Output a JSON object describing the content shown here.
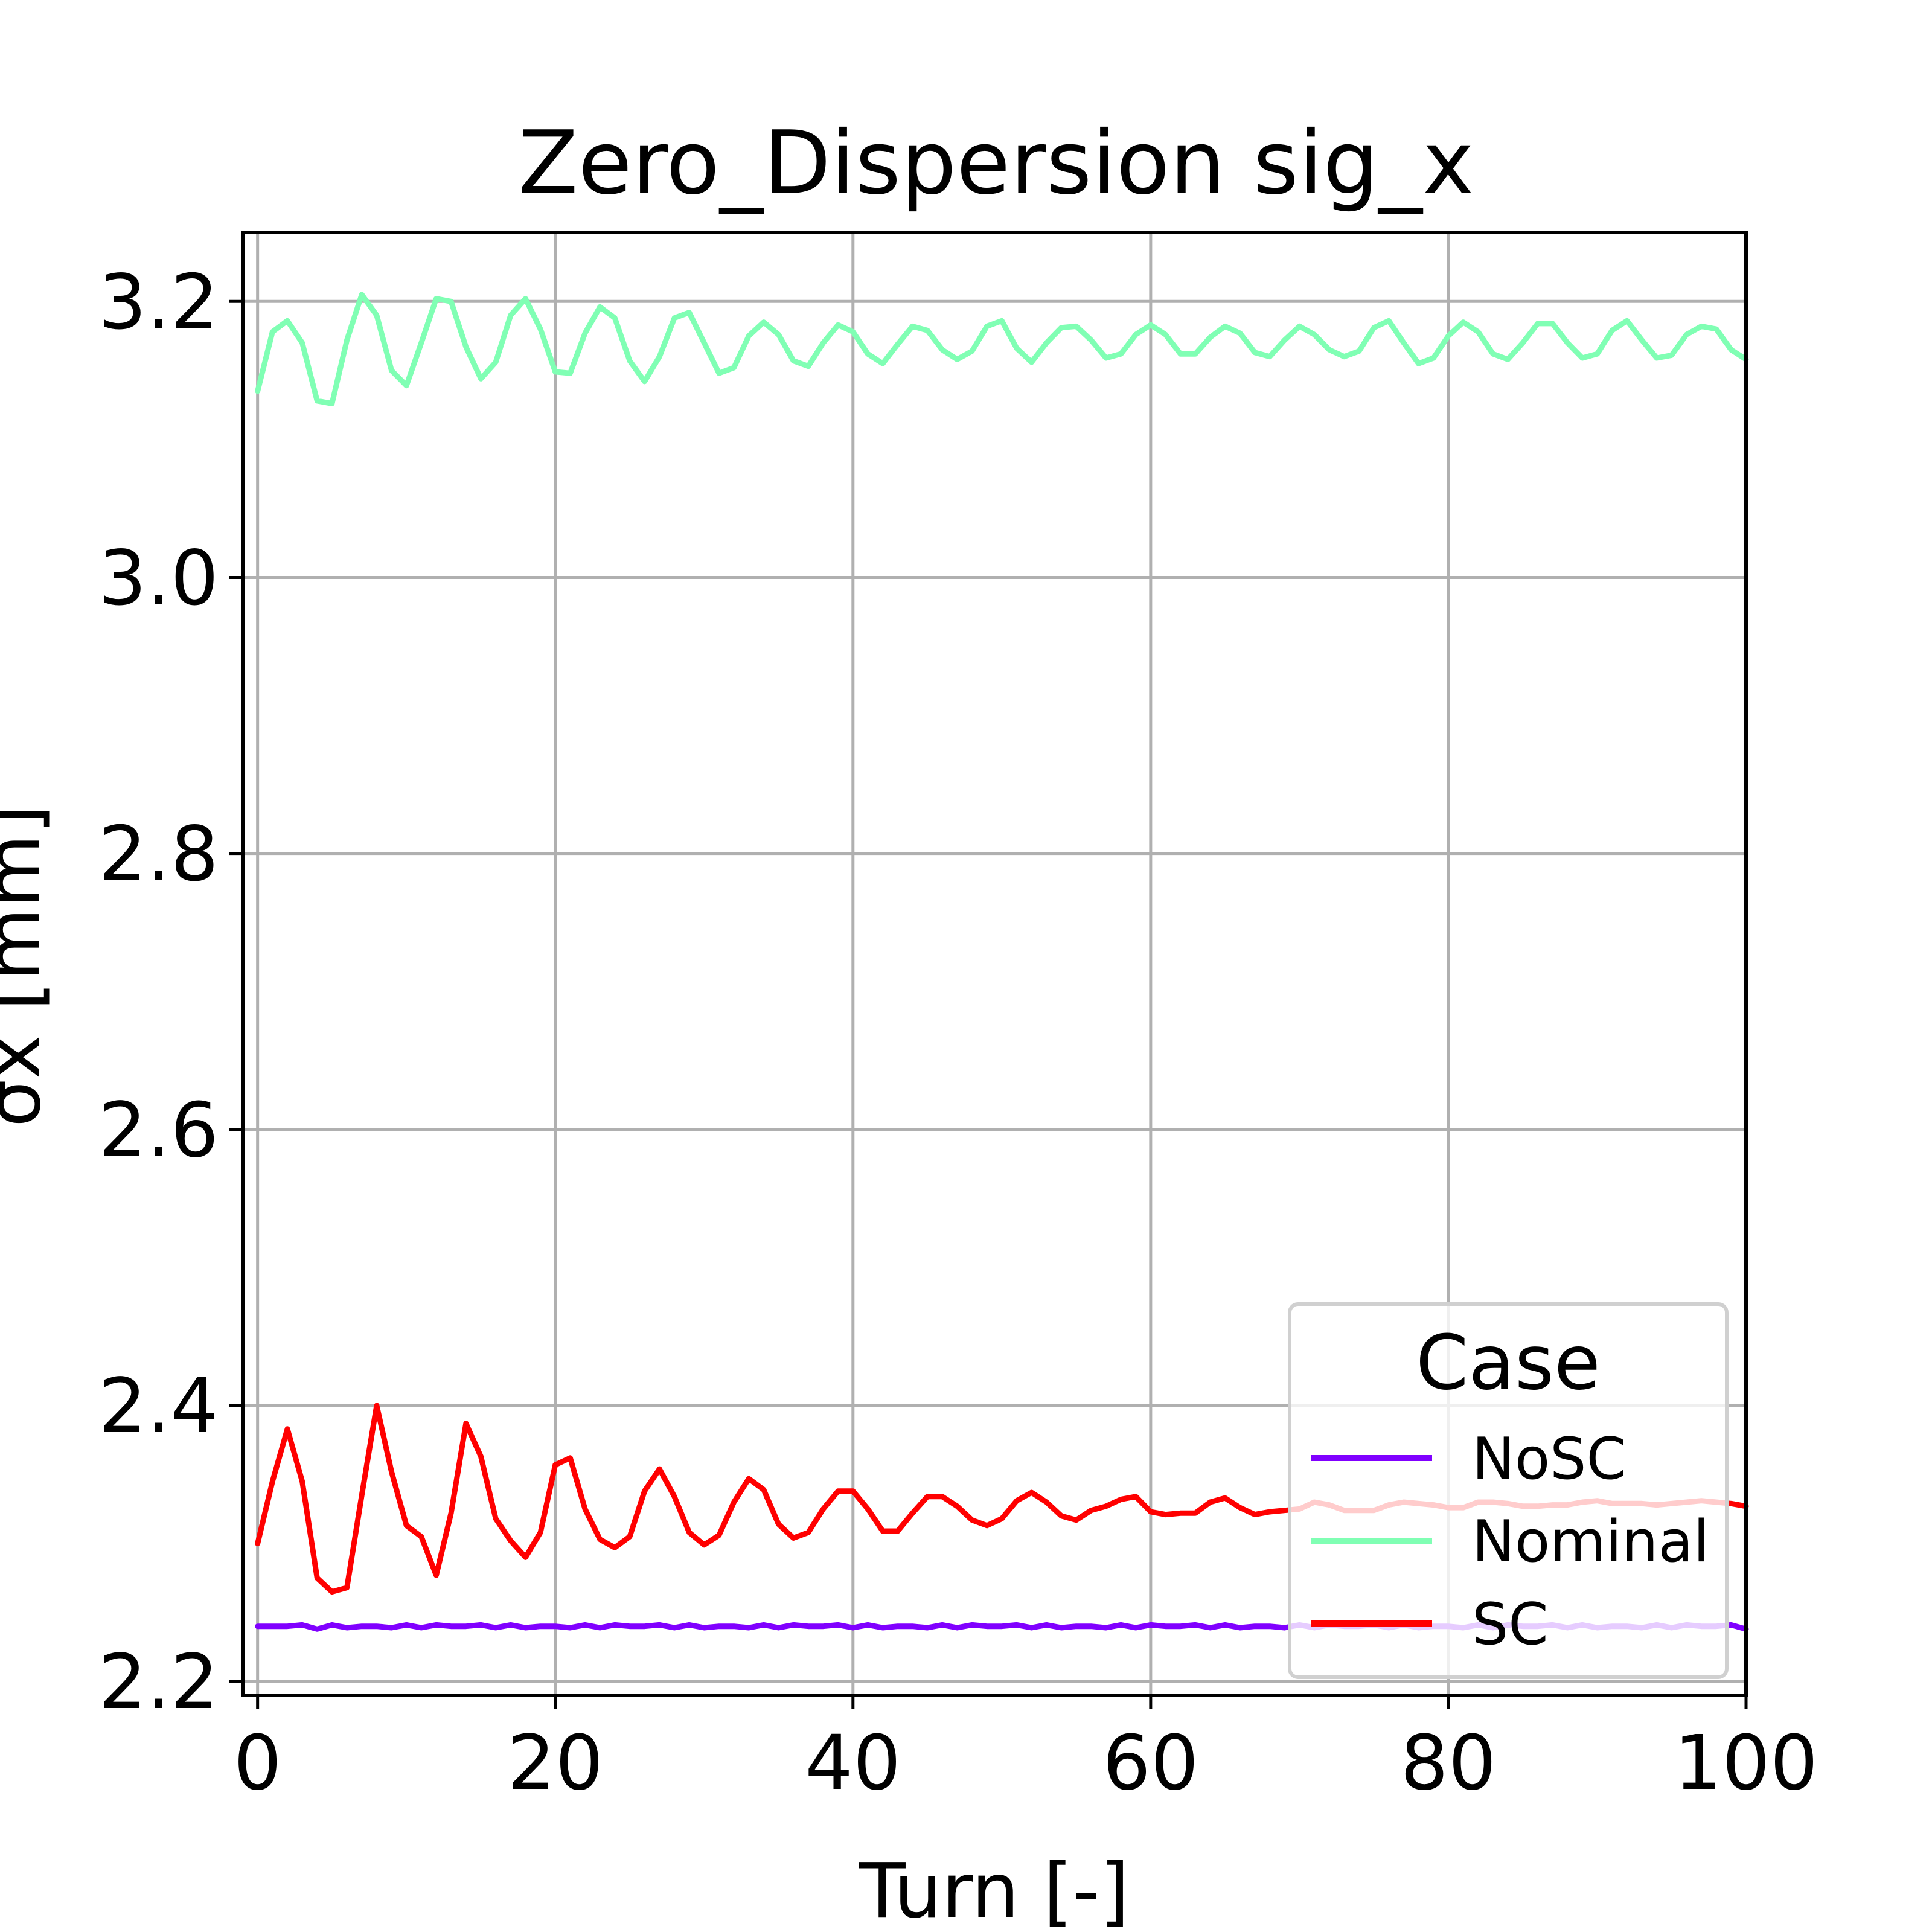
{
  "chart_data": {
    "type": "line",
    "title": "Zero_Dispersion  sig_x",
    "xlabel": "Turn [-]",
    "ylabel": "σx [mm]",
    "xlim": [
      -1,
      100
    ],
    "ylim": [
      2.19,
      3.25
    ],
    "xticks": [
      0,
      20,
      40,
      60,
      80,
      100
    ],
    "yticks": [
      2.2,
      2.4,
      2.6,
      2.8,
      3.0,
      3.2
    ],
    "grid": true,
    "legend": {
      "title": "Case",
      "position": "lower-right"
    },
    "x": [
      0,
      1,
      2,
      3,
      4,
      5,
      6,
      7,
      8,
      9,
      10,
      11,
      12,
      13,
      14,
      15,
      16,
      17,
      18,
      19,
      20,
      21,
      22,
      23,
      24,
      25,
      26,
      27,
      28,
      29,
      30,
      31,
      32,
      33,
      34,
      35,
      36,
      37,
      38,
      39,
      40,
      41,
      42,
      43,
      44,
      45,
      46,
      47,
      48,
      49,
      50,
      51,
      52,
      53,
      54,
      55,
      56,
      57,
      58,
      59,
      60,
      61,
      62,
      63,
      64,
      65,
      66,
      67,
      68,
      69,
      70,
      71,
      72,
      73,
      74,
      75,
      76,
      77,
      78,
      79,
      80,
      81,
      82,
      83,
      84,
      85,
      86,
      87,
      88,
      89,
      90,
      91,
      92,
      93,
      94,
      95,
      96,
      97,
      98,
      99,
      100
    ],
    "series": [
      {
        "name": "NoSC",
        "color": "#8000ff",
        "values": [
          2.24,
          2.24,
          2.24,
          2.241,
          2.238,
          2.241,
          2.239,
          2.24,
          2.24,
          2.239,
          2.241,
          2.239,
          2.241,
          2.24,
          2.24,
          2.241,
          2.239,
          2.241,
          2.239,
          2.24,
          2.24,
          2.239,
          2.241,
          2.239,
          2.241,
          2.24,
          2.24,
          2.241,
          2.239,
          2.241,
          2.239,
          2.24,
          2.24,
          2.239,
          2.241,
          2.239,
          2.241,
          2.24,
          2.24,
          2.241,
          2.239,
          2.241,
          2.239,
          2.24,
          2.24,
          2.239,
          2.241,
          2.239,
          2.241,
          2.24,
          2.24,
          2.241,
          2.239,
          2.241,
          2.239,
          2.24,
          2.24,
          2.239,
          2.241,
          2.239,
          2.241,
          2.24,
          2.24,
          2.241,
          2.239,
          2.241,
          2.239,
          2.24,
          2.24,
          2.239,
          2.241,
          2.239,
          2.241,
          2.24,
          2.24,
          2.241,
          2.239,
          2.241,
          2.239,
          2.24,
          2.24,
          2.239,
          2.241,
          2.239,
          2.241,
          2.24,
          2.24,
          2.241,
          2.239,
          2.241,
          2.239,
          2.24,
          2.24,
          2.239,
          2.241,
          2.239,
          2.241,
          2.24,
          2.24,
          2.241,
          2.238
        ]
      },
      {
        "name": "Nominal",
        "color": "#80ffb4",
        "values": [
          3.135,
          3.178,
          3.186,
          3.17,
          3.128,
          3.126,
          3.172,
          3.205,
          3.19,
          3.15,
          3.139,
          3.17,
          3.202,
          3.2,
          3.167,
          3.144,
          3.156,
          3.19,
          3.202,
          3.18,
          3.149,
          3.148,
          3.177,
          3.196,
          3.188,
          3.157,
          3.142,
          3.16,
          3.188,
          3.192,
          3.17,
          3.148,
          3.152,
          3.175,
          3.185,
          3.176,
          3.157,
          3.153,
          3.17,
          3.183,
          3.178,
          3.162,
          3.155,
          3.169,
          3.182,
          3.179,
          3.165,
          3.158,
          3.164,
          3.182,
          3.186,
          3.166,
          3.156,
          3.17,
          3.181,
          3.182,
          3.172,
          3.159,
          3.162,
          3.176,
          3.183,
          3.176,
          3.162,
          3.162,
          3.174,
          3.182,
          3.177,
          3.163,
          3.16,
          3.172,
          3.182,
          3.176,
          3.165,
          3.16,
          3.164,
          3.181,
          3.186,
          3.17,
          3.155,
          3.159,
          3.175,
          3.185,
          3.178,
          3.162,
          3.158,
          3.17,
          3.184,
          3.184,
          3.17,
          3.159,
          3.162,
          3.179,
          3.186,
          3.172,
          3.159,
          3.161,
          3.176,
          3.182,
          3.18,
          3.165,
          3.158
        ]
      },
      {
        "name": "SC",
        "color": "#ff0000",
        "values": [
          2.3,
          2.345,
          2.383,
          2.345,
          2.275,
          2.265,
          2.268,
          2.335,
          2.4,
          2.352,
          2.313,
          2.305,
          2.277,
          2.322,
          2.387,
          2.363,
          2.318,
          2.302,
          2.29,
          2.308,
          2.357,
          2.362,
          2.325,
          2.303,
          2.297,
          2.305,
          2.338,
          2.354,
          2.334,
          2.308,
          2.299,
          2.306,
          2.33,
          2.347,
          2.339,
          2.314,
          2.304,
          2.308,
          2.325,
          2.338,
          2.338,
          2.325,
          2.309,
          2.309,
          2.322,
          2.334,
          2.334,
          2.327,
          2.317,
          2.313,
          2.318,
          2.331,
          2.337,
          2.33,
          2.32,
          2.317,
          2.324,
          2.327,
          2.332,
          2.334,
          2.323,
          2.321,
          2.322,
          2.322,
          2.33,
          2.333,
          2.326,
          2.321,
          2.323,
          2.324,
          2.325,
          2.33,
          2.328,
          2.324,
          2.324,
          2.324,
          2.328,
          2.33,
          2.329,
          2.328,
          2.326,
          2.326,
          2.33,
          2.33,
          2.329,
          2.327,
          2.327,
          2.328,
          2.328,
          2.33,
          2.331,
          2.329,
          2.329,
          2.329,
          2.328,
          2.329,
          2.33,
          2.331,
          2.33,
          2.329,
          2.327
        ]
      }
    ]
  }
}
